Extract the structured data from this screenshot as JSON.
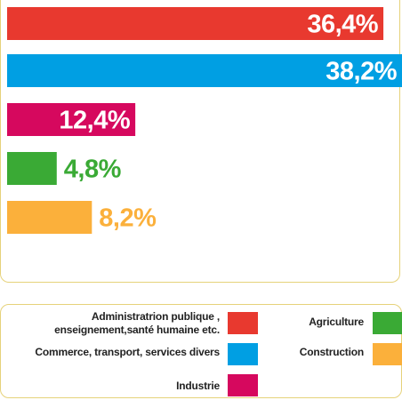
{
  "chart_data": {
    "type": "bar",
    "categories": [
      "Administratrion publique ,\nenseignement,santé humaine etc.",
      "Commerce, transport, services divers",
      "Industrie",
      "Agriculture",
      "Construction"
    ],
    "values": [
      36.4,
      38.2,
      12.4,
      4.8,
      8.2
    ],
    "value_labels": [
      "36,4%",
      "38,2%",
      "12,4%",
      "4,8%",
      "8,2%"
    ],
    "colors": [
      "#e8392f",
      "#009fe3",
      "#d6085e",
      "#3aaa35",
      "#fbb03b"
    ]
  }
}
